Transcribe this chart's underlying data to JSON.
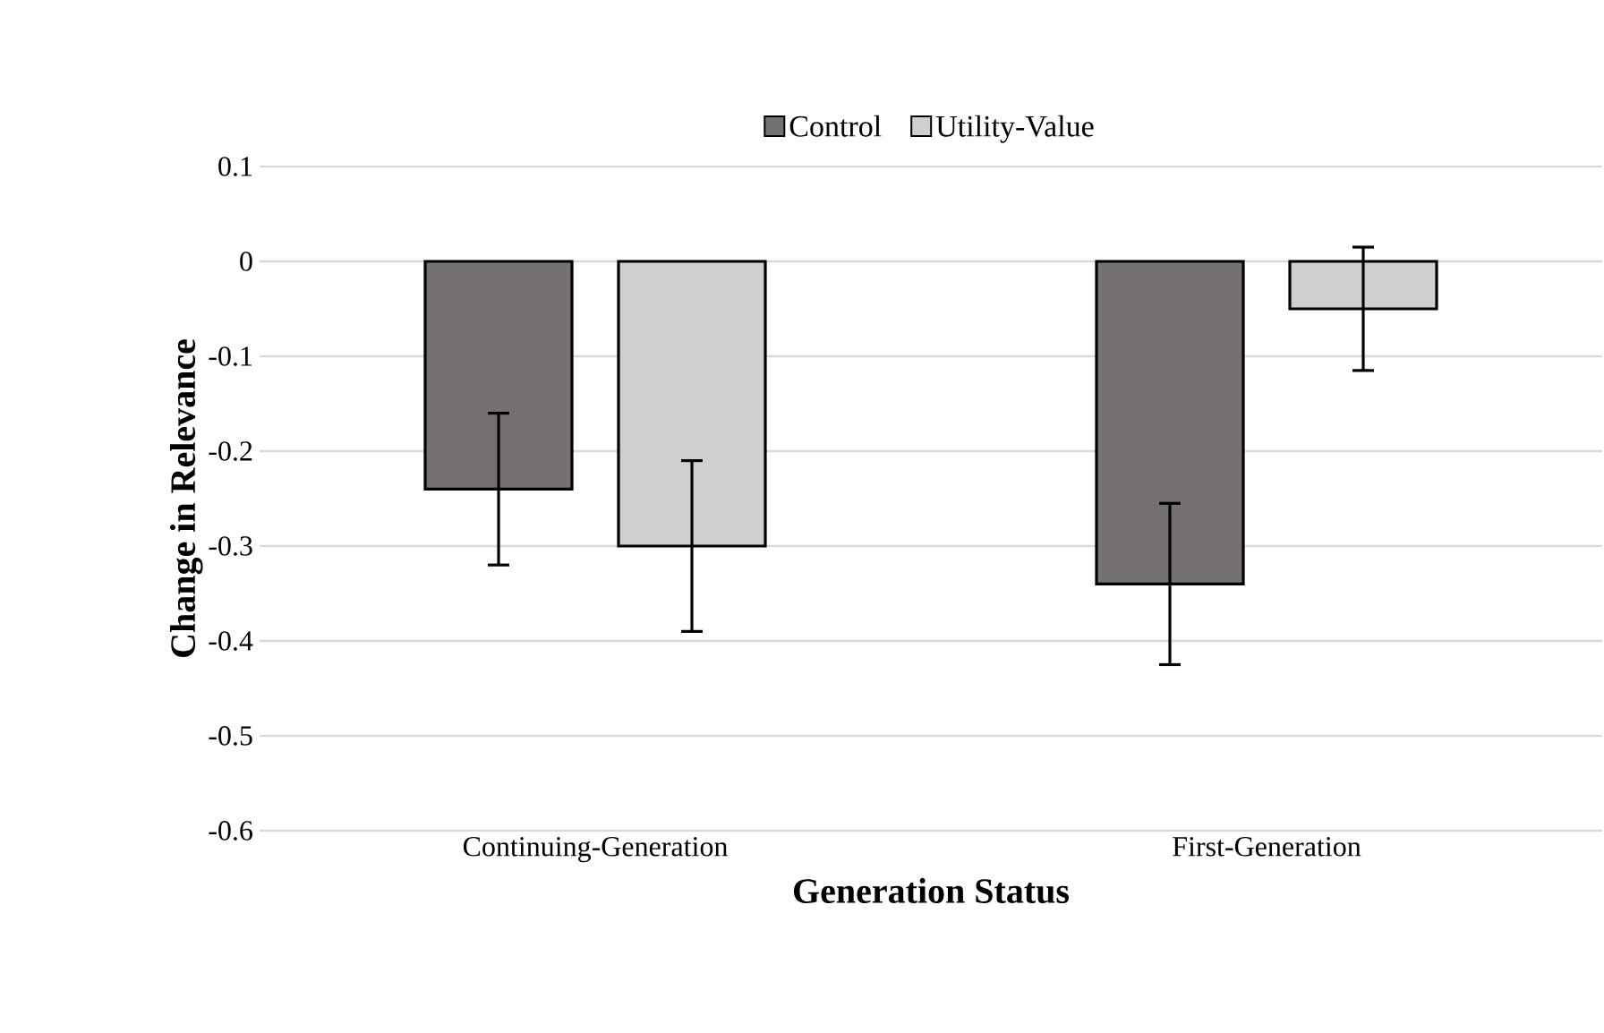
{
  "chart_data": {
    "type": "bar",
    "xlabel": "Generation Status",
    "ylabel": "Change in Relevance",
    "categories": [
      "Continuing-Generation",
      "First-Generation"
    ],
    "series": [
      {
        "name": "Control",
        "color": "#767171",
        "values": [
          -0.24,
          -0.34
        ],
        "errors": [
          0.08,
          0.085
        ]
      },
      {
        "name": "Utility-Value",
        "color": "#d0cece",
        "values": [
          -0.3,
          -0.05
        ],
        "errors": [
          0.09,
          0.065
        ]
      }
    ],
    "ylim": [
      -0.6,
      0.1
    ],
    "yticks": [
      0.1,
      0,
      -0.1,
      -0.2,
      -0.3,
      -0.4,
      -0.5,
      -0.6
    ],
    "grid": "y",
    "legend": "top"
  }
}
